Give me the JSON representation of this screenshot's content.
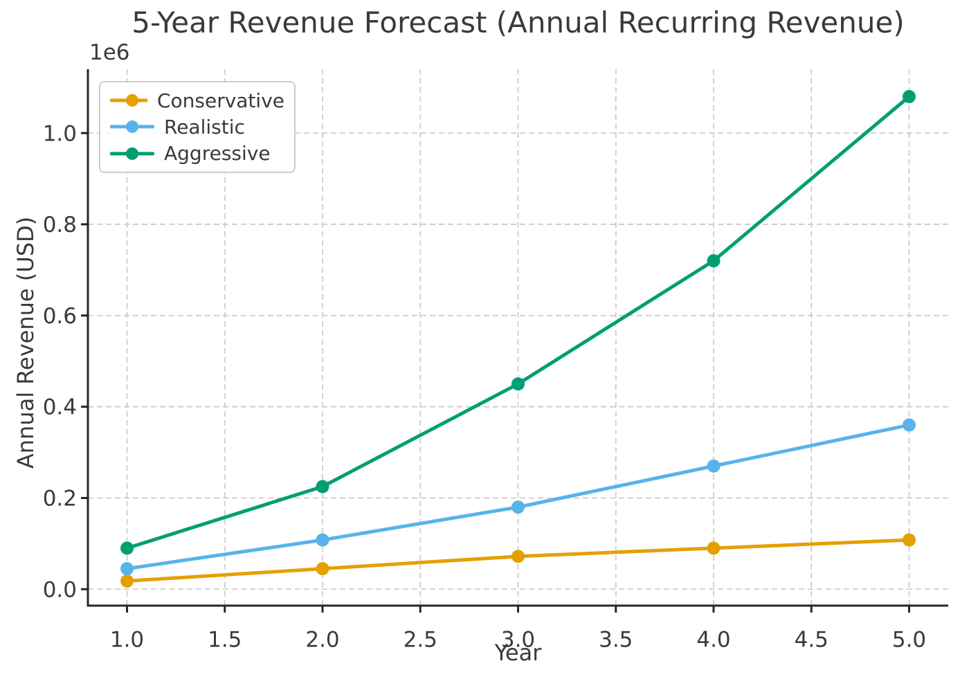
{
  "figure": {
    "background": "#ffffff"
  },
  "chart_data": {
    "type": "line",
    "title": "5-Year Revenue Forecast (Annual Recurring Revenue)",
    "xlabel": "Year",
    "ylabel": "Annual Revenue (USD)",
    "y_offset_label": "1e6",
    "x": [
      1,
      2,
      3,
      4,
      5
    ],
    "series": [
      {
        "name": "Conservative",
        "color": "#E69F00",
        "values": [
          18000,
          45000,
          72000,
          90000,
          108000
        ]
      },
      {
        "name": "Realistic",
        "color": "#56B4E9",
        "values": [
          45000,
          108000,
          180000,
          270000,
          360000
        ]
      },
      {
        "name": "Aggressive",
        "color": "#009E73",
        "values": [
          90000,
          225000,
          450000,
          720000,
          1080000
        ]
      }
    ],
    "xlim": [
      0.8,
      5.2
    ],
    "ylim": [
      -36000,
      1140000
    ],
    "xticks": [
      1.0,
      1.5,
      2.0,
      2.5,
      3.0,
      3.5,
      4.0,
      4.5,
      5.0
    ],
    "xtick_labels": [
      "1.0",
      "1.5",
      "2.0",
      "2.5",
      "3.0",
      "3.5",
      "4.0",
      "4.5",
      "5.0"
    ],
    "yticks": [
      0,
      200000,
      400000,
      600000,
      800000,
      1000000
    ],
    "ytick_labels": [
      "0.0",
      "0.2",
      "0.4",
      "0.6",
      "0.8",
      "1.0"
    ],
    "grid": {
      "on": true,
      "style": "dashed",
      "color": "#cccccc"
    },
    "axis_color": "#262626",
    "legend": {
      "position": "upper left",
      "entries": [
        "Conservative",
        "Realistic",
        "Aggressive"
      ]
    }
  }
}
